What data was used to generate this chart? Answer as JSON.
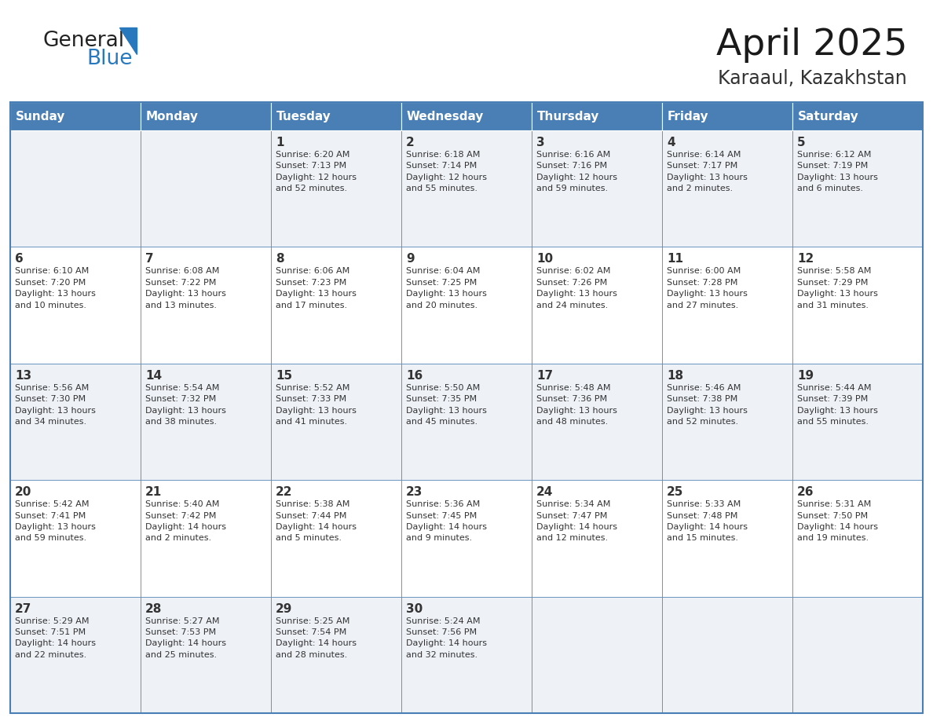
{
  "title": "April 2025",
  "subtitle": "Karaaul, Kazakhstan",
  "header_color": "#4a7fb5",
  "header_text_color": "#ffffff",
  "row_even_bg": "#eef2f7",
  "row_odd_bg": "#ffffff",
  "border_color": "#4a7fb5",
  "text_color": "#333333",
  "days_of_week": [
    "Sunday",
    "Monday",
    "Tuesday",
    "Wednesday",
    "Thursday",
    "Friday",
    "Saturday"
  ],
  "logo_general_color": "#222222",
  "logo_blue_color": "#2878be",
  "days_of_week_fontsize": 11,
  "day_num_fontsize": 11,
  "info_fontsize": 8,
  "title_fontsize": 34,
  "subtitle_fontsize": 17,
  "calendar_data": [
    [
      {
        "day": "",
        "info": ""
      },
      {
        "day": "",
        "info": ""
      },
      {
        "day": "1",
        "info": "Sunrise: 6:20 AM\nSunset: 7:13 PM\nDaylight: 12 hours\nand 52 minutes."
      },
      {
        "day": "2",
        "info": "Sunrise: 6:18 AM\nSunset: 7:14 PM\nDaylight: 12 hours\nand 55 minutes."
      },
      {
        "day": "3",
        "info": "Sunrise: 6:16 AM\nSunset: 7:16 PM\nDaylight: 12 hours\nand 59 minutes."
      },
      {
        "day": "4",
        "info": "Sunrise: 6:14 AM\nSunset: 7:17 PM\nDaylight: 13 hours\nand 2 minutes."
      },
      {
        "day": "5",
        "info": "Sunrise: 6:12 AM\nSunset: 7:19 PM\nDaylight: 13 hours\nand 6 minutes."
      }
    ],
    [
      {
        "day": "6",
        "info": "Sunrise: 6:10 AM\nSunset: 7:20 PM\nDaylight: 13 hours\nand 10 minutes."
      },
      {
        "day": "7",
        "info": "Sunrise: 6:08 AM\nSunset: 7:22 PM\nDaylight: 13 hours\nand 13 minutes."
      },
      {
        "day": "8",
        "info": "Sunrise: 6:06 AM\nSunset: 7:23 PM\nDaylight: 13 hours\nand 17 minutes."
      },
      {
        "day": "9",
        "info": "Sunrise: 6:04 AM\nSunset: 7:25 PM\nDaylight: 13 hours\nand 20 minutes."
      },
      {
        "day": "10",
        "info": "Sunrise: 6:02 AM\nSunset: 7:26 PM\nDaylight: 13 hours\nand 24 minutes."
      },
      {
        "day": "11",
        "info": "Sunrise: 6:00 AM\nSunset: 7:28 PM\nDaylight: 13 hours\nand 27 minutes."
      },
      {
        "day": "12",
        "info": "Sunrise: 5:58 AM\nSunset: 7:29 PM\nDaylight: 13 hours\nand 31 minutes."
      }
    ],
    [
      {
        "day": "13",
        "info": "Sunrise: 5:56 AM\nSunset: 7:30 PM\nDaylight: 13 hours\nand 34 minutes."
      },
      {
        "day": "14",
        "info": "Sunrise: 5:54 AM\nSunset: 7:32 PM\nDaylight: 13 hours\nand 38 minutes."
      },
      {
        "day": "15",
        "info": "Sunrise: 5:52 AM\nSunset: 7:33 PM\nDaylight: 13 hours\nand 41 minutes."
      },
      {
        "day": "16",
        "info": "Sunrise: 5:50 AM\nSunset: 7:35 PM\nDaylight: 13 hours\nand 45 minutes."
      },
      {
        "day": "17",
        "info": "Sunrise: 5:48 AM\nSunset: 7:36 PM\nDaylight: 13 hours\nand 48 minutes."
      },
      {
        "day": "18",
        "info": "Sunrise: 5:46 AM\nSunset: 7:38 PM\nDaylight: 13 hours\nand 52 minutes."
      },
      {
        "day": "19",
        "info": "Sunrise: 5:44 AM\nSunset: 7:39 PM\nDaylight: 13 hours\nand 55 minutes."
      }
    ],
    [
      {
        "day": "20",
        "info": "Sunrise: 5:42 AM\nSunset: 7:41 PM\nDaylight: 13 hours\nand 59 minutes."
      },
      {
        "day": "21",
        "info": "Sunrise: 5:40 AM\nSunset: 7:42 PM\nDaylight: 14 hours\nand 2 minutes."
      },
      {
        "day": "22",
        "info": "Sunrise: 5:38 AM\nSunset: 7:44 PM\nDaylight: 14 hours\nand 5 minutes."
      },
      {
        "day": "23",
        "info": "Sunrise: 5:36 AM\nSunset: 7:45 PM\nDaylight: 14 hours\nand 9 minutes."
      },
      {
        "day": "24",
        "info": "Sunrise: 5:34 AM\nSunset: 7:47 PM\nDaylight: 14 hours\nand 12 minutes."
      },
      {
        "day": "25",
        "info": "Sunrise: 5:33 AM\nSunset: 7:48 PM\nDaylight: 14 hours\nand 15 minutes."
      },
      {
        "day": "26",
        "info": "Sunrise: 5:31 AM\nSunset: 7:50 PM\nDaylight: 14 hours\nand 19 minutes."
      }
    ],
    [
      {
        "day": "27",
        "info": "Sunrise: 5:29 AM\nSunset: 7:51 PM\nDaylight: 14 hours\nand 22 minutes."
      },
      {
        "day": "28",
        "info": "Sunrise: 5:27 AM\nSunset: 7:53 PM\nDaylight: 14 hours\nand 25 minutes."
      },
      {
        "day": "29",
        "info": "Sunrise: 5:25 AM\nSunset: 7:54 PM\nDaylight: 14 hours\nand 28 minutes."
      },
      {
        "day": "30",
        "info": "Sunrise: 5:24 AM\nSunset: 7:56 PM\nDaylight: 14 hours\nand 32 minutes."
      },
      {
        "day": "",
        "info": ""
      },
      {
        "day": "",
        "info": ""
      },
      {
        "day": "",
        "info": ""
      }
    ]
  ]
}
